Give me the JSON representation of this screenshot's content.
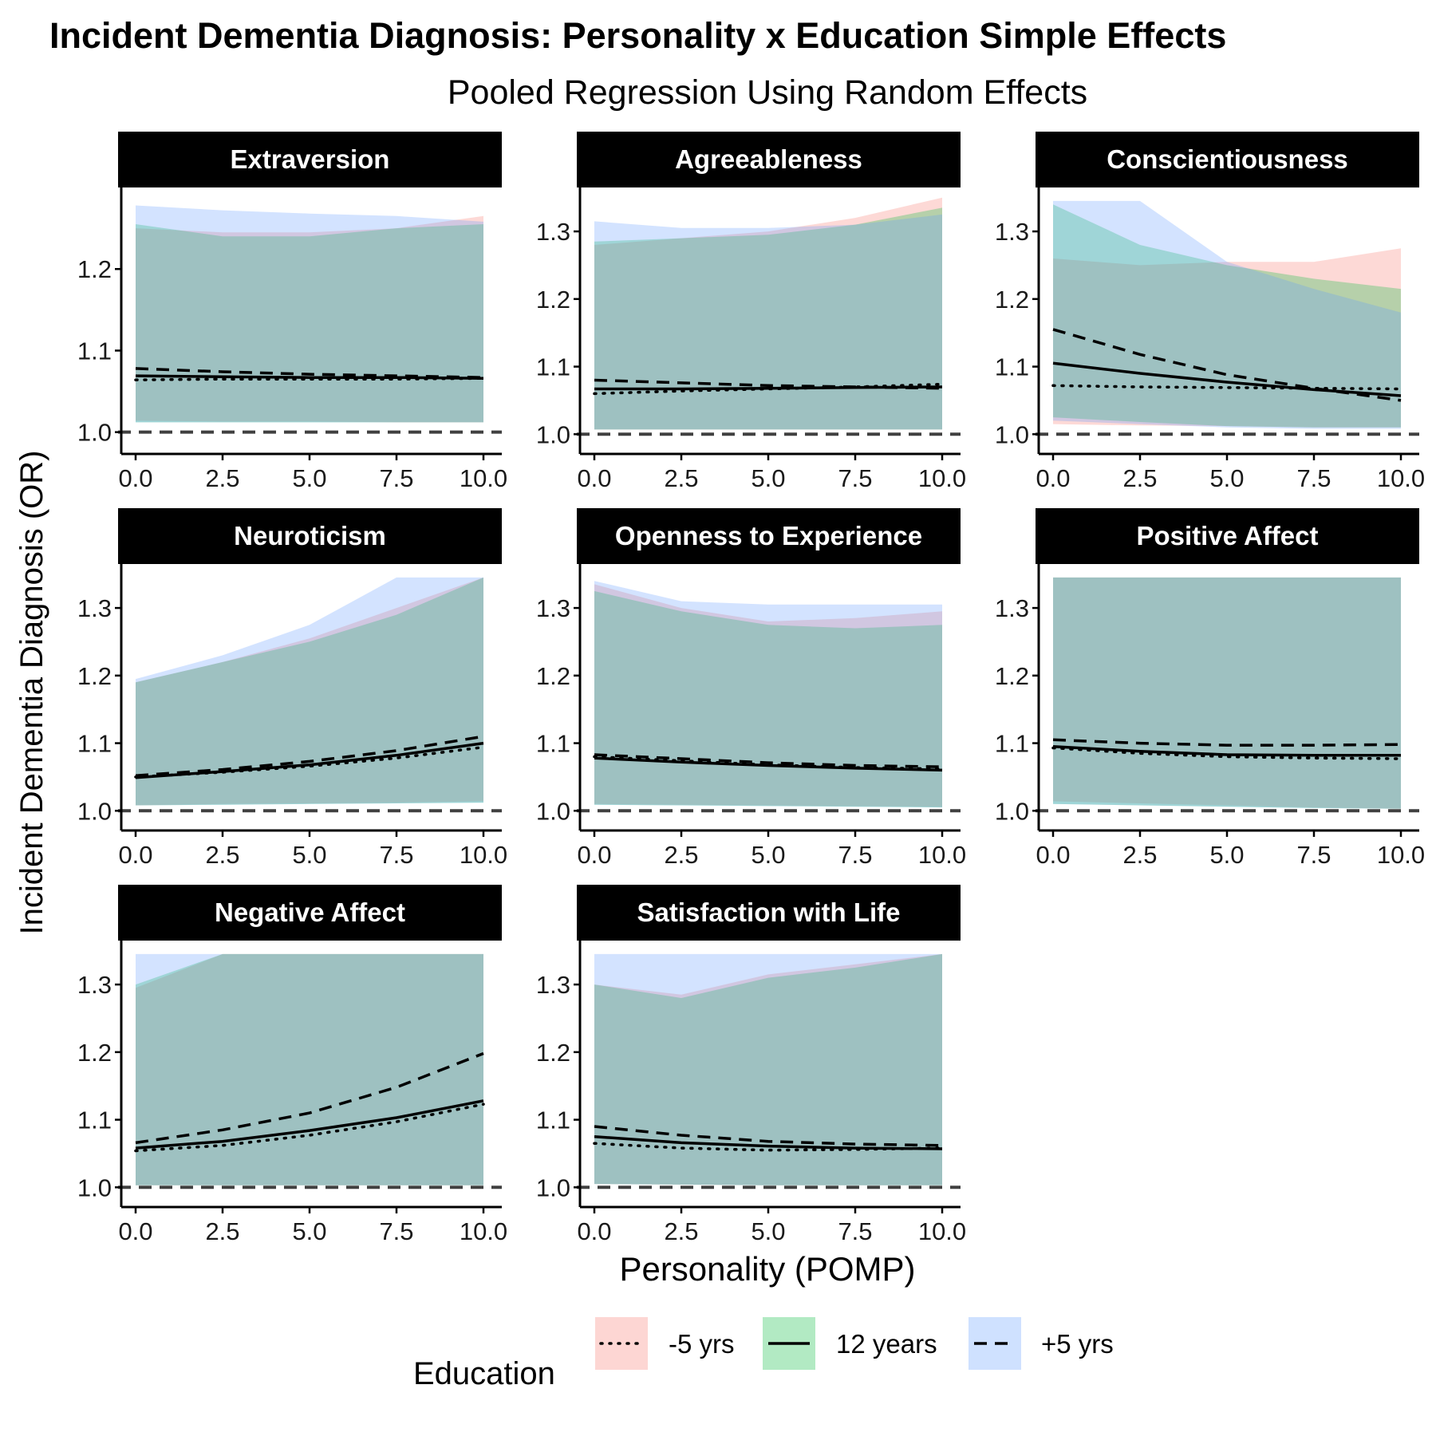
{
  "chart_data": {
    "type": "line",
    "title": "Incident Dementia Diagnosis: Personality x Education Simple Effects",
    "subtitle": "Pooled Regression Using Random Effects",
    "xlabel": "Personality (POMP)",
    "ylabel": "Incident Dementia Diagnosis (OR)",
    "xlim": [
      0,
      10
    ],
    "x_ticks": [
      "0.0",
      "2.5",
      "5.0",
      "7.5",
      "10.0"
    ],
    "reference_line": 1.0,
    "legend": {
      "title": "Education",
      "position": "bottom",
      "entries": [
        {
          "label": "-5 yrs",
          "linetype": "dotted",
          "fill": "#f8766d"
        },
        {
          "label": "12 years",
          "linetype": "solid",
          "fill": "#00ba38"
        },
        {
          "label": "+5 yrs",
          "linetype": "dashed",
          "fill": "#619cff"
        }
      ]
    },
    "panels": [
      {
        "name": "Extraversion",
        "ylim": [
          0.985,
          1.3
        ],
        "y_ticks": [
          1.0,
          1.1,
          1.2
        ],
        "x": [
          0,
          2.5,
          5,
          7.5,
          10
        ],
        "series": [
          {
            "name": "-5 yrs",
            "linetype": "dotted",
            "values": [
              1.064,
              1.065,
              1.065,
              1.065,
              1.066
            ],
            "lower": [
              1.014,
              1.013,
              1.013,
              1.012,
              1.012
            ],
            "upper": [
              1.25,
              1.245,
              1.245,
              1.25,
              1.265
            ]
          },
          {
            "name": "12 years",
            "linetype": "solid",
            "values": [
              1.069,
              1.068,
              1.067,
              1.067,
              1.066
            ],
            "lower": [
              1.012,
              1.012,
              1.012,
              1.012,
              1.012
            ],
            "upper": [
              1.255,
              1.24,
              1.24,
              1.25,
              1.255
            ]
          },
          {
            "name": "+5 yrs",
            "linetype": "dashed",
            "values": [
              1.078,
              1.074,
              1.071,
              1.069,
              1.067
            ],
            "lower": [
              1.012,
              1.012,
              1.012,
              1.012,
              1.012
            ],
            "upper": [
              1.278,
              1.272,
              1.268,
              1.265,
              1.258
            ]
          }
        ]
      },
      {
        "name": "Agreeableness",
        "ylim": [
          0.985,
          1.365
        ],
        "y_ticks": [
          1.0,
          1.1,
          1.2,
          1.3
        ],
        "x": [
          0,
          2.5,
          5,
          7.5,
          10
        ],
        "series": [
          {
            "name": "-5 yrs",
            "linetype": "dotted",
            "values": [
              1.06,
              1.064,
              1.067,
              1.07,
              1.074
            ],
            "lower": [
              1.007,
              1.007,
              1.007,
              1.007,
              1.007
            ],
            "upper": [
              1.28,
              1.29,
              1.3,
              1.32,
              1.35
            ]
          },
          {
            "name": "12 years",
            "linetype": "solid",
            "values": [
              1.067,
              1.067,
              1.068,
              1.069,
              1.07
            ],
            "lower": [
              1.007,
              1.007,
              1.007,
              1.007,
              1.007
            ],
            "upper": [
              1.285,
              1.29,
              1.295,
              1.31,
              1.335
            ]
          },
          {
            "name": "+5 yrs",
            "linetype": "dashed",
            "values": [
              1.08,
              1.076,
              1.072,
              1.07,
              1.068
            ],
            "lower": [
              1.007,
              1.007,
              1.007,
              1.007,
              1.007
            ],
            "upper": [
              1.315,
              1.305,
              1.305,
              1.31,
              1.325
            ]
          }
        ]
      },
      {
        "name": "Conscientiousness",
        "ylim": [
          0.985,
          1.365
        ],
        "y_ticks": [
          1.0,
          1.1,
          1.2,
          1.3
        ],
        "x": [
          0,
          2.5,
          5,
          7.5,
          10
        ],
        "series": [
          {
            "name": "-5 yrs",
            "linetype": "dotted",
            "values": [
              1.072,
              1.07,
              1.069,
              1.068,
              1.067
            ],
            "lower": [
              1.015,
              1.013,
              1.012,
              1.01,
              1.01
            ],
            "upper": [
              1.26,
              1.25,
              1.255,
              1.255,
              1.275
            ]
          },
          {
            "name": "12 years",
            "linetype": "solid",
            "values": [
              1.105,
              1.09,
              1.077,
              1.066,
              1.057
            ],
            "lower": [
              1.025,
              1.018,
              1.012,
              1.01,
              1.01
            ],
            "upper": [
              1.34,
              1.28,
              1.25,
              1.23,
              1.215
            ]
          },
          {
            "name": "+5 yrs",
            "linetype": "dashed",
            "values": [
              1.155,
              1.118,
              1.088,
              1.068,
              1.05
            ],
            "lower": [
              1.02,
              1.015,
              1.01,
              1.008,
              1.008
            ],
            "upper": [
              1.345,
              1.345,
              1.255,
              1.215,
              1.18
            ]
          }
        ]
      },
      {
        "name": "Neuroticism",
        "ylim": [
          0.985,
          1.365
        ],
        "y_ticks": [
          1.0,
          1.1,
          1.2,
          1.3
        ],
        "x": [
          0,
          2.5,
          5,
          7.5,
          10
        ],
        "series": [
          {
            "name": "-5 yrs",
            "linetype": "dotted",
            "values": [
              1.05,
              1.057,
              1.066,
              1.078,
              1.094
            ],
            "lower": [
              1.008,
              1.01,
              1.011,
              1.012,
              1.014
            ],
            "upper": [
              1.19,
              1.22,
              1.255,
              1.3,
              1.345
            ]
          },
          {
            "name": "12 years",
            "linetype": "solid",
            "values": [
              1.049,
              1.058,
              1.068,
              1.082,
              1.1
            ],
            "lower": [
              1.008,
              1.009,
              1.01,
              1.011,
              1.012
            ],
            "upper": [
              1.19,
              1.22,
              1.25,
              1.29,
              1.345
            ]
          },
          {
            "name": "+5 yrs",
            "linetype": "dashed",
            "values": [
              1.052,
              1.061,
              1.073,
              1.089,
              1.11
            ],
            "lower": [
              1.008,
              1.009,
              1.01,
              1.011,
              1.012
            ],
            "upper": [
              1.195,
              1.23,
              1.275,
              1.345,
              1.345
            ]
          }
        ]
      },
      {
        "name": "Openness to Experience",
        "ylim": [
          0.985,
          1.365
        ],
        "y_ticks": [
          1.0,
          1.1,
          1.2,
          1.3
        ],
        "x": [
          0,
          2.5,
          5,
          7.5,
          10
        ],
        "series": [
          {
            "name": "-5 yrs",
            "linetype": "dotted",
            "values": [
              1.08,
              1.074,
              1.068,
              1.064,
              1.062
            ],
            "lower": [
              1.01,
              1.009,
              1.008,
              1.007,
              1.006
            ],
            "upper": [
              1.335,
              1.3,
              1.28,
              1.285,
              1.295
            ]
          },
          {
            "name": "12 years",
            "linetype": "solid",
            "values": [
              1.078,
              1.072,
              1.067,
              1.063,
              1.06
            ],
            "lower": [
              1.009,
              1.008,
              1.007,
              1.006,
              1.005
            ],
            "upper": [
              1.325,
              1.295,
              1.275,
              1.27,
              1.275
            ]
          },
          {
            "name": "+5 yrs",
            "linetype": "dashed",
            "values": [
              1.083,
              1.077,
              1.071,
              1.067,
              1.065
            ],
            "lower": [
              1.009,
              1.008,
              1.007,
              1.006,
              1.005
            ],
            "upper": [
              1.34,
              1.31,
              1.305,
              1.305,
              1.305
            ]
          }
        ]
      },
      {
        "name": "Positive Affect",
        "ylim": [
          0.985,
          1.365
        ],
        "y_ticks": [
          1.0,
          1.1,
          1.2,
          1.3
        ],
        "x": [
          0,
          2.5,
          5,
          7.5,
          10
        ],
        "series": [
          {
            "name": "-5 yrs",
            "linetype": "dotted",
            "values": [
              1.093,
              1.085,
              1.08,
              1.078,
              1.077
            ],
            "lower": [
              1.014,
              1.011,
              1.008,
              1.005,
              1.003
            ],
            "upper": [
              1.345,
              1.345,
              1.345,
              1.345,
              1.345
            ]
          },
          {
            "name": "12 years",
            "linetype": "solid",
            "values": [
              1.095,
              1.088,
              1.083,
              1.082,
              1.082
            ],
            "lower": [
              1.01,
              1.008,
              1.006,
              1.004,
              1.003
            ],
            "upper": [
              1.345,
              1.345,
              1.345,
              1.345,
              1.345
            ]
          },
          {
            "name": "+5 yrs",
            "linetype": "dashed",
            "values": [
              1.105,
              1.1,
              1.097,
              1.097,
              1.098
            ],
            "lower": [
              1.01,
              1.008,
              1.006,
              1.004,
              1.003
            ],
            "upper": [
              1.345,
              1.345,
              1.345,
              1.345,
              1.345
            ]
          }
        ]
      },
      {
        "name": "Negative Affect",
        "ylim": [
          0.985,
          1.365
        ],
        "y_ticks": [
          1.0,
          1.1,
          1.2,
          1.3
        ],
        "x": [
          0,
          2.5,
          5,
          7.5,
          10
        ],
        "series": [
          {
            "name": "-5 yrs",
            "linetype": "dotted",
            "values": [
              1.054,
              1.062,
              1.077,
              1.097,
              1.123
            ],
            "lower": [
              1.003,
              1.003,
              1.003,
              1.003,
              1.003
            ],
            "upper": [
              1.295,
              1.345,
              1.345,
              1.345,
              1.345
            ]
          },
          {
            "name": "12 years",
            "linetype": "solid",
            "values": [
              1.058,
              1.068,
              1.084,
              1.103,
              1.128
            ],
            "lower": [
              1.003,
              1.003,
              1.003,
              1.003,
              1.003
            ],
            "upper": [
              1.3,
              1.345,
              1.345,
              1.345,
              1.345
            ]
          },
          {
            "name": "+5 yrs",
            "linetype": "dashed",
            "values": [
              1.066,
              1.085,
              1.11,
              1.148,
              1.198
            ],
            "lower": [
              1.003,
              1.003,
              1.003,
              1.003,
              1.003
            ],
            "upper": [
              1.345,
              1.345,
              1.345,
              1.345,
              1.345
            ]
          }
        ]
      },
      {
        "name": "Satisfaction with Life",
        "ylim": [
          0.985,
          1.365
        ],
        "y_ticks": [
          1.0,
          1.1,
          1.2,
          1.3
        ],
        "x": [
          0,
          2.5,
          5,
          7.5,
          10
        ],
        "series": [
          {
            "name": "-5 yrs",
            "linetype": "dotted",
            "values": [
              1.065,
              1.058,
              1.055,
              1.056,
              1.058
            ],
            "lower": [
              1.005,
              1.004,
              1.003,
              1.003,
              1.003
            ],
            "upper": [
              1.3,
              1.285,
              1.315,
              1.33,
              1.345
            ]
          },
          {
            "name": "12 years",
            "linetype": "solid",
            "values": [
              1.075,
              1.066,
              1.061,
              1.058,
              1.057
            ],
            "lower": [
              1.005,
              1.004,
              1.003,
              1.003,
              1.003
            ],
            "upper": [
              1.3,
              1.28,
              1.31,
              1.325,
              1.345
            ]
          },
          {
            "name": "+5 yrs",
            "linetype": "dashed",
            "values": [
              1.09,
              1.077,
              1.068,
              1.064,
              1.062
            ],
            "lower": [
              1.005,
              1.004,
              1.003,
              1.003,
              1.003
            ],
            "upper": [
              1.345,
              1.345,
              1.345,
              1.345,
              1.345
            ]
          }
        ]
      }
    ]
  }
}
